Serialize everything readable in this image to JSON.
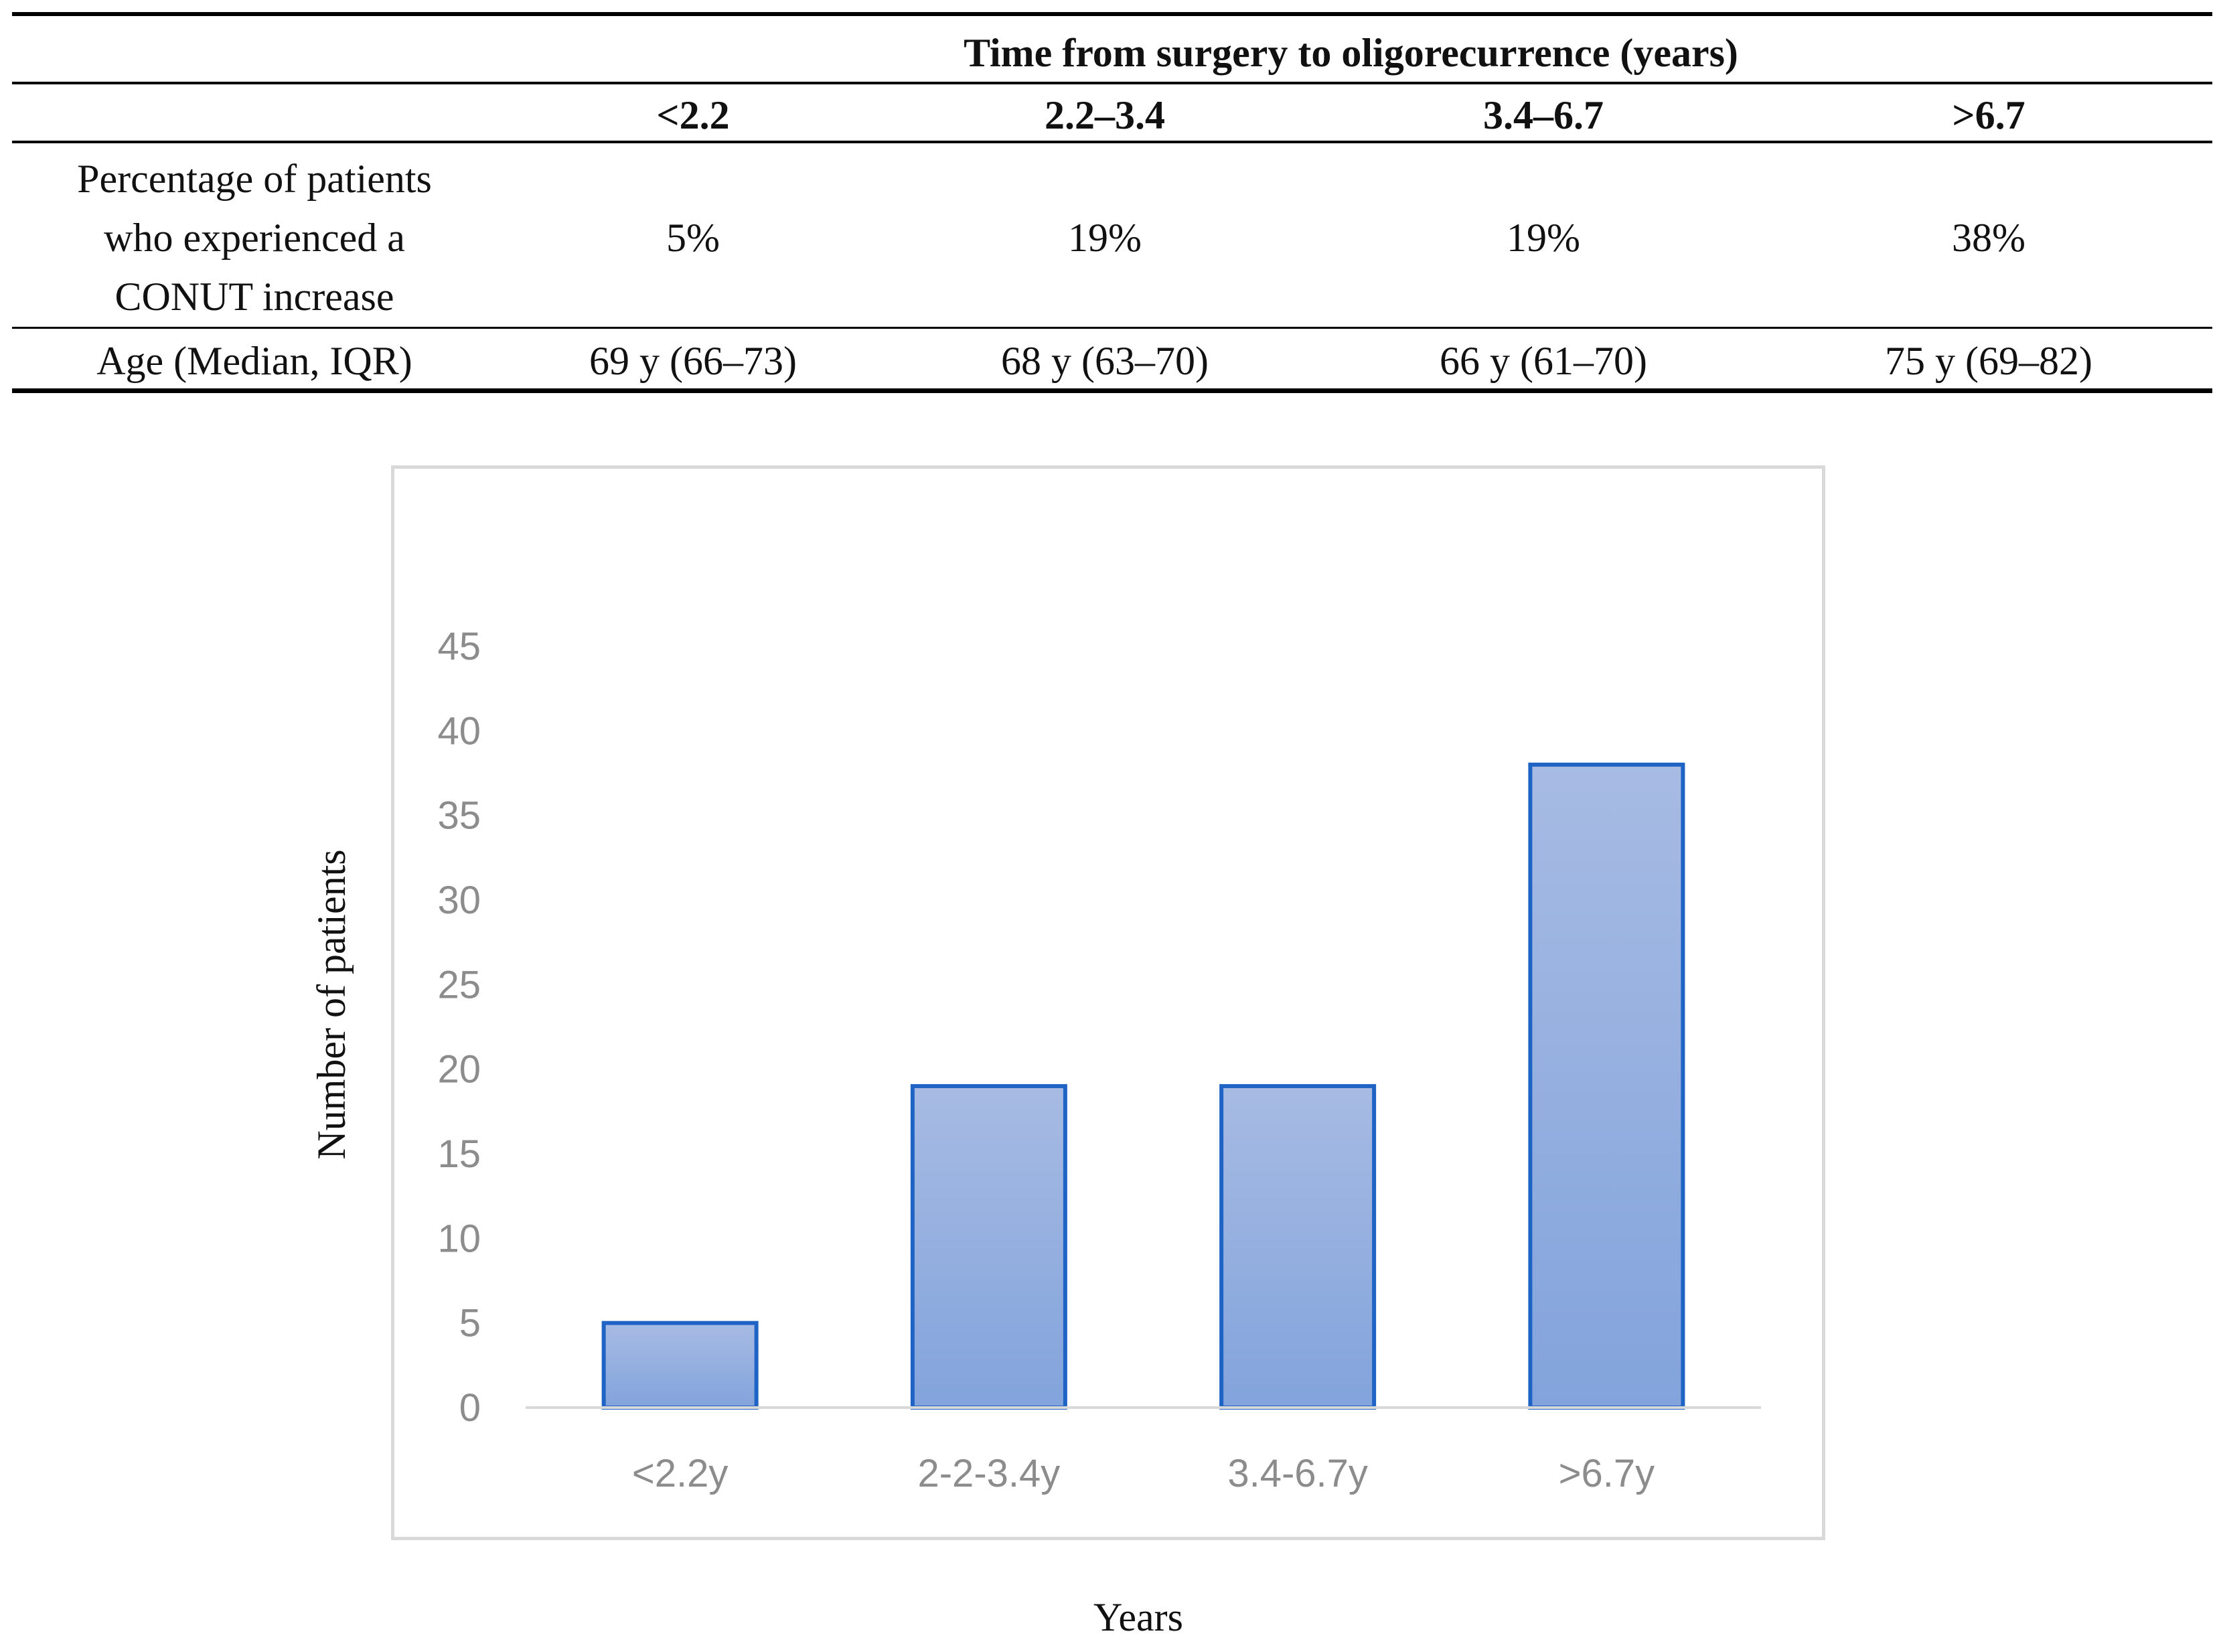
{
  "table": {
    "group_header": "Time from surgery to oligorecurrence (years)",
    "columns": [
      "<2.2",
      "2.2–3.4",
      "3.4–6.7",
      ">6.7"
    ],
    "rows": [
      {
        "label_lines": [
          "Percentage of patients",
          "who experienced a",
          "CONUT increase"
        ],
        "values": [
          "5%",
          "19%",
          "19%",
          "38%"
        ]
      },
      {
        "label_lines": [
          "Age (Median, IQR)"
        ],
        "values": [
          "69 y (66–73)",
          "68 y (63–70)",
          "66 y (61–70)",
          "75 y (69–82)"
        ]
      }
    ]
  },
  "chart_data": {
    "type": "bar",
    "title": "",
    "xlabel": "Years",
    "ylabel": "Number of patients",
    "categories": [
      "<2.2y",
      "2-2-3.4y",
      "3.4-6.7y",
      ">6.7y"
    ],
    "values": [
      5,
      19,
      19,
      38
    ],
    "ylim": [
      0,
      45
    ],
    "yticks": [
      0,
      5,
      10,
      15,
      20,
      25,
      30,
      35,
      40,
      45
    ],
    "grid": false,
    "legend": "none",
    "colors": {
      "bar_fill_top": "#a7bbe3",
      "bar_fill_bottom": "#82a3dc",
      "bar_stroke": "#1f63c4",
      "axis": "#d9d9d9",
      "tick_text": "#8c8c8c"
    }
  }
}
